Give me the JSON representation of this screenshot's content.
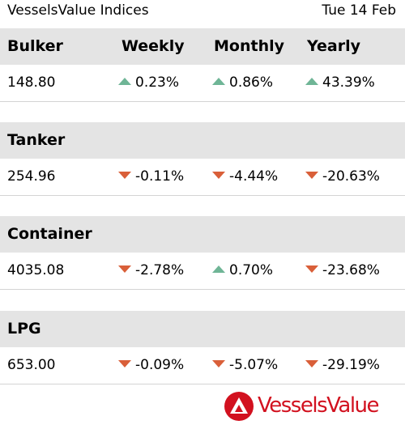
{
  "header": {
    "title": "VesselsValue Indices",
    "date": "Tue 14 Feb"
  },
  "columns": [
    "Weekly",
    "Monthly",
    "Yearly"
  ],
  "sections": [
    {
      "name": "Bulker",
      "value": "148.80",
      "changes": [
        {
          "text": "0.23%",
          "direction": "up"
        },
        {
          "text": "0.86%",
          "direction": "up"
        },
        {
          "text": "43.39%",
          "direction": "up"
        }
      ]
    },
    {
      "name": "Tanker",
      "value": "254.96",
      "changes": [
        {
          "text": "-0.11%",
          "direction": "down"
        },
        {
          "text": "-4.44%",
          "direction": "down"
        },
        {
          "text": "-20.63%",
          "direction": "down"
        }
      ]
    },
    {
      "name": "Container",
      "value": "4035.08",
      "changes": [
        {
          "text": "-2.78%",
          "direction": "down"
        },
        {
          "text": "0.70%",
          "direction": "up"
        },
        {
          "text": "-23.68%",
          "direction": "down"
        }
      ]
    },
    {
      "name": "LPG",
      "value": "653.00",
      "changes": [
        {
          "text": "-0.09%",
          "direction": "down"
        },
        {
          "text": "-5.07%",
          "direction": "down"
        },
        {
          "text": "-29.19%",
          "direction": "down"
        }
      ]
    }
  ],
  "colors": {
    "up": "#6fb596",
    "down": "#d95f39",
    "header_bg": "#e4e4e4",
    "brand": "#d2111f"
  },
  "icons": {
    "up": "triangle-up-icon",
    "down": "triangle-down-icon",
    "logo": "vesselsvalue-logo-icon"
  },
  "logo": {
    "text": "VesselsValue"
  }
}
